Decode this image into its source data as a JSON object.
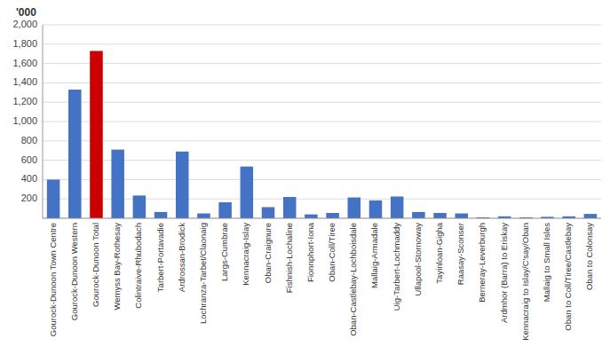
{
  "chart_data": {
    "type": "bar",
    "y_label": "'000",
    "categories": [
      "Gourock-Dunoon Town Centre",
      "Gourock-Dunoon Western",
      "Gourock-Dunoon Total",
      "Wemyss Bay-Rothesay",
      "Colintraive-Rhubodach",
      "Tarbert-Portavadie",
      "Ardrossan-Brodick",
      "Lochranza-Tarbet/Claonaig",
      "Largs-Cumbrae",
      "Kennacraig-Islay",
      "Oban-Craignure",
      "Fishnish-Lochaline",
      "Fionnphort-Iona",
      "Oban-Coll/Tiree",
      "Oban-Castlebay-Lochboisdale",
      "Mallaig-Armadale",
      "Uig-Tarbert-Lochmaddy",
      "Ullapool-Stornoway",
      "Tayinloan-Gigha",
      "Raasay-Sconser",
      "Berneray-Leverburgh",
      "Ardmhor (Barra) to Eriskay",
      "Kennacraig to Islay/C'say/Oban",
      "Mallaig to Small Isles",
      "Oban to Coll/Tiree/Castlebay",
      "Oban to Colonsay"
    ],
    "values": [
      400,
      1330,
      1730,
      710,
      235,
      65,
      690,
      50,
      165,
      535,
      115,
      220,
      40,
      55,
      215,
      185,
      225,
      65,
      55,
      50,
      10,
      20,
      10,
      15,
      20,
      45
    ],
    "colors": [
      "#4472C4",
      "#4472C4",
      "#CC0000",
      "#4472C4",
      "#4472C4",
      "#4472C4",
      "#4472C4",
      "#4472C4",
      "#4472C4",
      "#4472C4",
      "#4472C4",
      "#4472C4",
      "#4472C4",
      "#4472C4",
      "#4472C4",
      "#4472C4",
      "#4472C4",
      "#4472C4",
      "#4472C4",
      "#4472C4",
      "#4472C4",
      "#4472C4",
      "#4472C4",
      "#4472C4",
      "#4472C4",
      "#4472C4"
    ],
    "ylim": [
      0,
      2000
    ],
    "yticks": [
      200,
      400,
      600,
      800,
      {
        "value": 1000,
        "label": "1,000"
      },
      {
        "value": 1200,
        "label": "1,200"
      },
      {
        "value": 1400,
        "label": "1,400"
      },
      {
        "value": 1600,
        "label": "1,600"
      },
      {
        "value": 1800,
        "label": "1,800"
      },
      {
        "value": 2000,
        "label": "2,000"
      }
    ],
    "grid": true
  }
}
